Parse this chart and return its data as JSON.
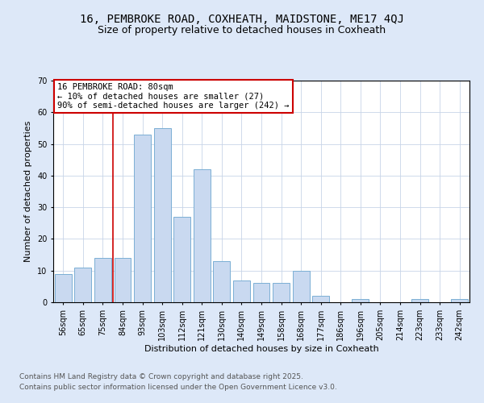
{
  "title_line1": "16, PEMBROKE ROAD, COXHEATH, MAIDSTONE, ME17 4QJ",
  "title_line2": "Size of property relative to detached houses in Coxheath",
  "xlabel": "Distribution of detached houses by size in Coxheath",
  "ylabel": "Number of detached properties",
  "footer_line1": "Contains HM Land Registry data © Crown copyright and database right 2025.",
  "footer_line2": "Contains public sector information licensed under the Open Government Licence v3.0.",
  "categories": [
    "56sqm",
    "65sqm",
    "75sqm",
    "84sqm",
    "93sqm",
    "103sqm",
    "112sqm",
    "121sqm",
    "130sqm",
    "140sqm",
    "149sqm",
    "158sqm",
    "168sqm",
    "177sqm",
    "186sqm",
    "196sqm",
    "205sqm",
    "214sqm",
    "223sqm",
    "233sqm",
    "242sqm"
  ],
  "values": [
    9,
    11,
    14,
    14,
    53,
    55,
    27,
    42,
    13,
    7,
    6,
    6,
    10,
    2,
    0,
    1,
    0,
    0,
    1,
    0,
    1
  ],
  "bar_color": "#c9d9f0",
  "bar_edge_color": "#7bafd4",
  "annotation_text": "16 PEMBROKE ROAD: 80sqm\n← 10% of detached houses are smaller (27)\n90% of semi-detached houses are larger (242) →",
  "annotation_box_color": "#ffffff",
  "annotation_box_edge_color": "#cc0000",
  "vline_x": 2.5,
  "vline_color": "#cc0000",
  "ylim": [
    0,
    70
  ],
  "yticks": [
    0,
    10,
    20,
    30,
    40,
    50,
    60,
    70
  ],
  "background_color": "#dde8f8",
  "plot_background": "#ffffff",
  "grid_color": "#c8d4e8",
  "title_fontsize": 10,
  "subtitle_fontsize": 9,
  "axis_label_fontsize": 8,
  "tick_fontsize": 7,
  "annotation_fontsize": 7.5,
  "footer_fontsize": 6.5
}
